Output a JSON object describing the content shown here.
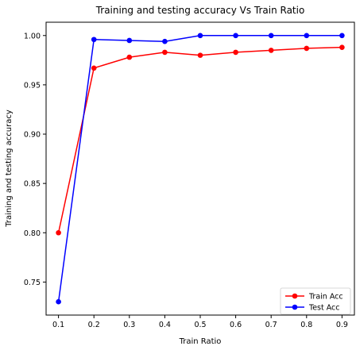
{
  "chart_data": {
    "type": "line",
    "title": "Training and testing accuracy Vs Train Ratio",
    "xlabel": "Train Ratio",
    "ylabel": "Training and testing accuracy",
    "x": [
      0.1,
      0.2,
      0.3,
      0.4,
      0.5,
      0.6,
      0.7,
      0.8,
      0.9
    ],
    "xlim": [
      0.065,
      0.935
    ],
    "ylim": [
      0.7165,
      1.0135
    ],
    "xticks": [
      0.1,
      0.2,
      0.3,
      0.4,
      0.5,
      0.6,
      0.7,
      0.8,
      0.9
    ],
    "xtick_labels": [
      "0.1",
      "0.2",
      "0.3",
      "0.4",
      "0.5",
      "0.6",
      "0.7",
      "0.8",
      "0.9"
    ],
    "yticks": [
      0.75,
      0.8,
      0.85,
      0.9,
      0.95,
      1.0
    ],
    "ytick_labels": [
      "0.75",
      "0.80",
      "0.85",
      "0.90",
      "0.95",
      "1.00"
    ],
    "grid": false,
    "legend_position": "bottom-right",
    "series": [
      {
        "name": "Train Acc",
        "color": "#ff0000",
        "marker": "circle",
        "values": [
          0.8,
          0.967,
          0.978,
          0.983,
          0.98,
          0.983,
          0.985,
          0.987,
          0.988
        ]
      },
      {
        "name": "Test Acc",
        "color": "#0000ff",
        "marker": "circle",
        "values": [
          0.73,
          0.996,
          0.995,
          0.994,
          1.0,
          1.0,
          1.0,
          1.0,
          1.0
        ]
      }
    ]
  }
}
